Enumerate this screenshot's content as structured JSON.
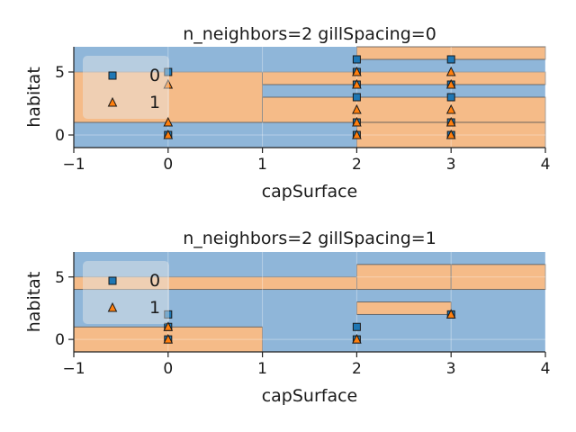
{
  "colors": {
    "class0": "#1f77b4",
    "class1": "#ff7f0e",
    "region0": "#8fb6d9",
    "region1": "#f5bb88",
    "boundary": "#555555"
  },
  "chart_data": [
    {
      "type": "scatter",
      "subtype": "decision-regions",
      "title": "n_neighbors=2 gillSpacing=0",
      "xlabel": "capSurface",
      "ylabel": "habitat",
      "xlim": [
        -1,
        4
      ],
      "ylim": [
        -1,
        7
      ],
      "xticks": [
        -1,
        0,
        1,
        2,
        3,
        4
      ],
      "yticks": [
        0,
        5
      ],
      "legend": {
        "placement": "top-left",
        "entries": [
          "0",
          "1"
        ]
      },
      "regions_class1": [
        {
          "x": [
            -1,
            1
          ],
          "y": [
            1,
            5
          ]
        },
        {
          "x": [
            1,
            4
          ],
          "y": [
            1,
            3
          ]
        },
        {
          "x": [
            1,
            4
          ],
          "y": [
            4,
            5
          ]
        },
        {
          "x": [
            2,
            4
          ],
          "y": [
            -1,
            1
          ]
        },
        {
          "x": [
            2,
            4
          ],
          "y": [
            6,
            7
          ]
        }
      ],
      "series": [
        {
          "name": "0",
          "marker": "square",
          "points": [
            [
              0,
              5
            ],
            [
              0,
              0
            ],
            [
              2,
              6
            ],
            [
              2,
              5
            ],
            [
              2,
              4
            ],
            [
              2,
              3
            ],
            [
              2,
              1
            ],
            [
              2,
              0
            ],
            [
              3,
              6
            ],
            [
              3,
              4
            ],
            [
              3,
              3
            ],
            [
              3,
              1
            ],
            [
              3,
              0
            ]
          ]
        },
        {
          "name": "1",
          "marker": "triangle",
          "points": [
            [
              0,
              4
            ],
            [
              0,
              1
            ],
            [
              0,
              0
            ],
            [
              2,
              5
            ],
            [
              2,
              4
            ],
            [
              2,
              2
            ],
            [
              2,
              1
            ],
            [
              2,
              0
            ],
            [
              3,
              5
            ],
            [
              3,
              4
            ],
            [
              3,
              2
            ],
            [
              3,
              1
            ],
            [
              3,
              0
            ]
          ]
        }
      ]
    },
    {
      "type": "scatter",
      "subtype": "decision-regions",
      "title": "n_neighbors=2 gillSpacing=1",
      "xlabel": "capSurface",
      "ylabel": "habitat",
      "xlim": [
        -1,
        4
      ],
      "ylim": [
        -1,
        7
      ],
      "xticks": [
        -1,
        0,
        1,
        2,
        3,
        4
      ],
      "yticks": [
        0,
        5
      ],
      "legend": {
        "placement": "top-left",
        "entries": [
          "0",
          "1"
        ]
      },
      "regions_class1": [
        {
          "x": [
            -1,
            1
          ],
          "y": [
            -1,
            1
          ]
        },
        {
          "x": [
            -1,
            2
          ],
          "y": [
            4,
            5
          ]
        },
        {
          "x": [
            2,
            3
          ],
          "y": [
            2,
            3
          ]
        },
        {
          "x": [
            2,
            3
          ],
          "y": [
            4,
            6
          ]
        },
        {
          "x": [
            3,
            4
          ],
          "y": [
            4,
            6
          ]
        }
      ],
      "series": [
        {
          "name": "0",
          "marker": "square",
          "points": [
            [
              0,
              2
            ],
            [
              0,
              1
            ],
            [
              0,
              0
            ],
            [
              2,
              1
            ],
            [
              2,
              0
            ],
            [
              3,
              2
            ]
          ]
        },
        {
          "name": "1",
          "marker": "triangle",
          "points": [
            [
              0,
              1
            ],
            [
              0,
              0
            ],
            [
              2,
              0
            ],
            [
              3,
              2
            ]
          ]
        }
      ]
    }
  ]
}
